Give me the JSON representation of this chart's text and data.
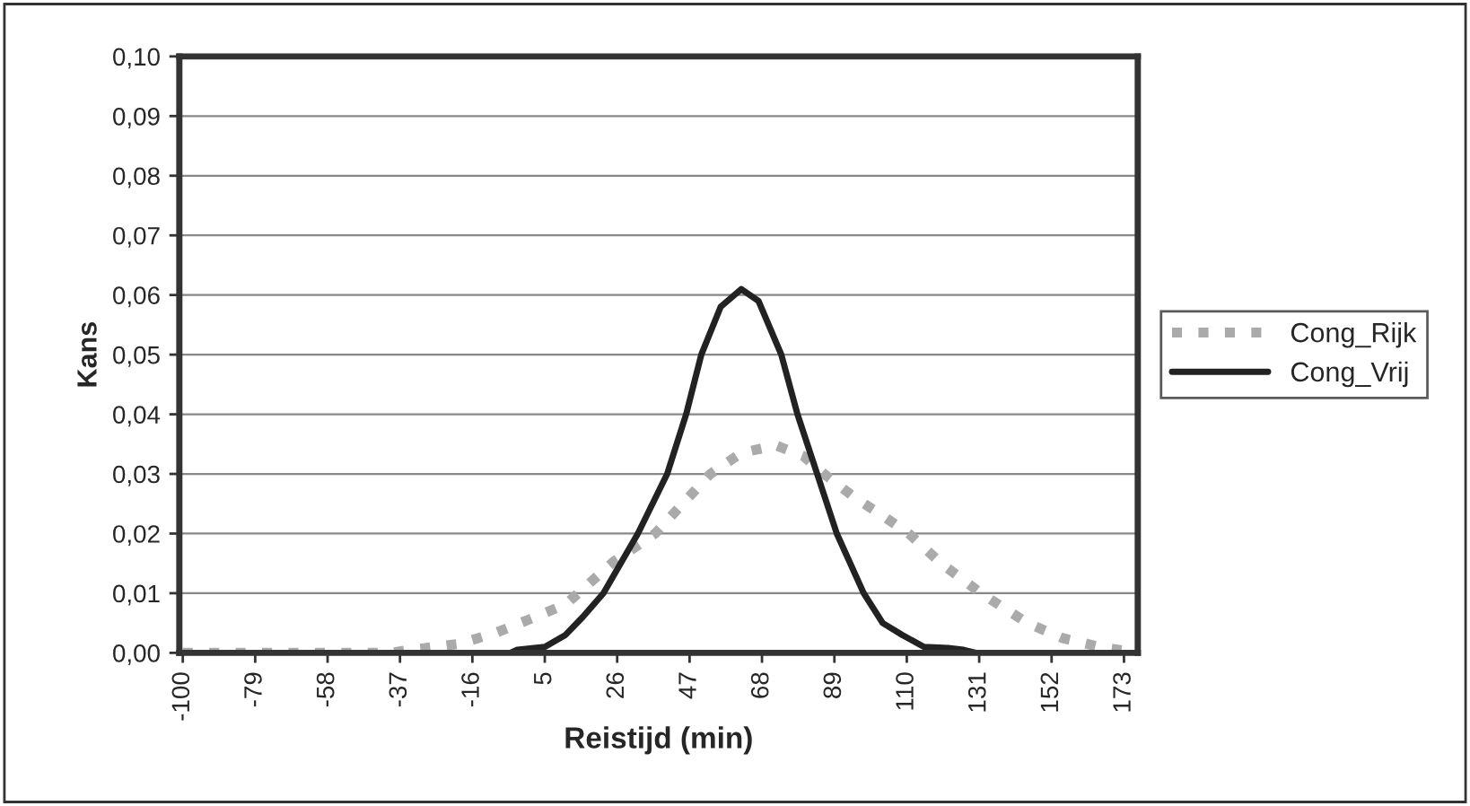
{
  "chart_data": {
    "type": "line",
    "xlabel": "Reistijd (min)",
    "ylabel": "Kans",
    "xlim": [
      -101,
      177
    ],
    "xticks": [
      -100,
      -79,
      -58,
      -37,
      -16,
      5,
      26,
      47,
      68,
      89,
      110,
      131,
      152,
      173
    ],
    "ylim": [
      0,
      0.1
    ],
    "yticks": [
      {
        "value": 0,
        "label": "0,00"
      },
      {
        "value": 0.01,
        "label": "0,01"
      },
      {
        "value": 0.02,
        "label": "0,02"
      },
      {
        "value": 0.03,
        "label": "0,03"
      },
      {
        "value": 0.04,
        "label": "0,04"
      },
      {
        "value": 0.05,
        "label": "0,05"
      },
      {
        "value": 0.06,
        "label": "0,06"
      },
      {
        "value": 0.07,
        "label": "0,07"
      },
      {
        "value": 0.08,
        "label": "0,08"
      },
      {
        "value": 0.09,
        "label": "0,09"
      },
      {
        "value": 0.1,
        "label": "0,10"
      }
    ],
    "grid": "y",
    "legend": "right",
    "marker": "none",
    "series": [
      {
        "name": "Cong_Rijk",
        "color": "#aaaaaa",
        "line_style": "dotted",
        "x": [
          -100,
          -40,
          -34,
          -20,
          -9.5,
          0,
          11,
          25,
          37,
          45,
          53,
          62,
          72,
          80,
          86,
          95,
          103,
          110.6,
          120,
          131.5,
          145,
          155,
          166,
          177
        ],
        "values": [
          0,
          0,
          0.0005,
          0.0015,
          0.0033,
          0.0055,
          0.0081,
          0.0153,
          0.02,
          0.025,
          0.03,
          0.0335,
          0.0348,
          0.033,
          0.03,
          0.026,
          0.023,
          0.02,
          0.015,
          0.01,
          0.005,
          0.0025,
          0.001,
          0
        ]
      },
      {
        "name": "Cong_Vrij",
        "color": "#222222",
        "line_style": "solid",
        "x": [
          -100,
          -5,
          -3,
          5,
          11,
          16,
          22,
          32,
          40.5,
          46,
          50.4,
          56,
          62,
          67,
          73.6,
          78.3,
          84,
          89.7,
          97.5,
          103,
          108.7,
          115,
          122,
          126.5,
          130,
          177
        ],
        "values": [
          0,
          0,
          0.0005,
          0.001,
          0.003,
          0.006,
          0.01,
          0.02,
          0.03,
          0.04,
          0.05,
          0.058,
          0.061,
          0.059,
          0.05,
          0.04,
          0.03,
          0.02,
          0.01,
          0.005,
          0.003,
          0.001,
          0.0008,
          0.0005,
          0,
          0
        ]
      }
    ]
  }
}
